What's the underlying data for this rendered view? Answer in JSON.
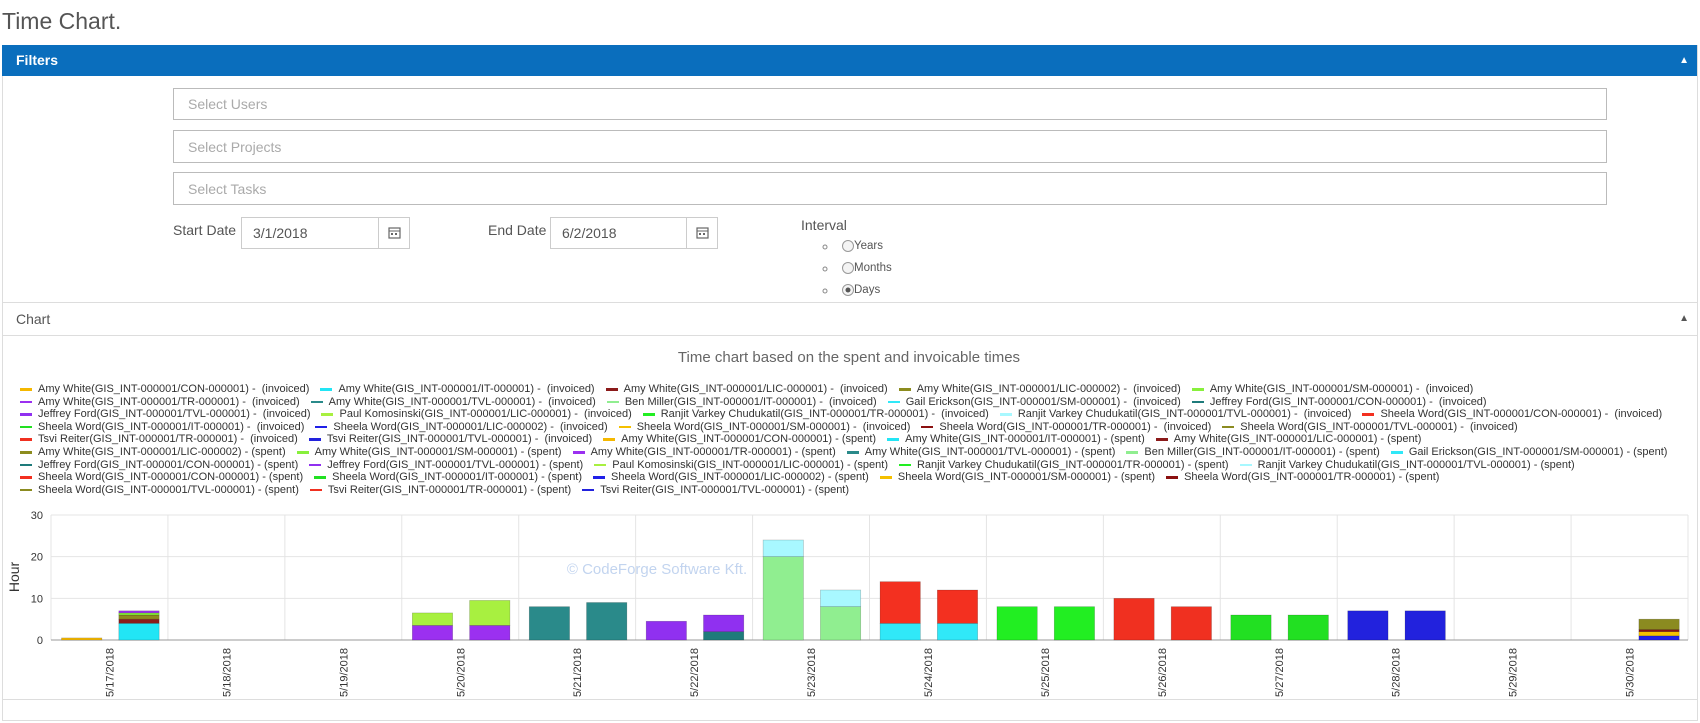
{
  "page_title": "Time Chart.",
  "filters": {
    "title": "Filters",
    "users_placeholder": "Select Users",
    "projects_placeholder": "Select Projects",
    "tasks_placeholder": "Select Tasks",
    "start_date_label": "Start Date",
    "start_date": "3/1/2018",
    "end_date_label": "End Date",
    "end_date": "6/2/2018",
    "interval_label": "Interval",
    "interval_options": [
      "Years",
      "Months",
      "Days"
    ],
    "selected_interval": 2
  },
  "chart_panel": {
    "title": "Chart"
  },
  "chart_data": {
    "type": "bar",
    "stacked": true,
    "grid": true,
    "title": "Time chart based on the spent and invoicable times",
    "watermark": "© CodeForge Software Kft.",
    "y_label": "Hour",
    "categories": [
      "5/17/2018",
      "5/18/2018",
      "5/19/2018",
      "5/20/2018",
      "5/21/2018",
      "5/22/2018",
      "5/23/2018",
      "5/24/2018",
      "5/25/2018",
      "5/26/2018",
      "5/27/2018",
      "5/28/2018",
      "5/29/2018",
      "5/30/2018"
    ],
    "ylim": [
      0,
      30
    ],
    "yticks": [
      0,
      10,
      20,
      30
    ],
    "series": [
      {
        "name": "Amy White(GIS_INT-000001/CON-000001) -  (invoiced)",
        "color": "#f5b800",
        "stack": 0,
        "values": [
          0.5,
          null,
          null,
          null,
          null,
          null,
          null,
          null,
          null,
          null,
          null,
          null,
          null,
          null
        ]
      },
      {
        "name": "Amy White(GIS_INT-000001/IT-000001) -  (invoiced)",
        "color": "#22e5f5",
        "stack": 0,
        "values": [
          null,
          null,
          null,
          null,
          null,
          null,
          null,
          null,
          null,
          null,
          null,
          null,
          null,
          null
        ]
      },
      {
        "name": "Amy White(GIS_INT-000001/LIC-000001) -  (invoiced)",
        "color": "#8b1a1a",
        "stack": 0,
        "values": [
          null,
          null,
          null,
          null,
          null,
          null,
          null,
          null,
          null,
          null,
          null,
          null,
          null,
          null
        ]
      },
      {
        "name": "Amy White(GIS_INT-000001/LIC-000002) -  (invoiced)",
        "color": "#8c8c1e",
        "stack": 0,
        "values": [
          null,
          null,
          null,
          null,
          null,
          null,
          null,
          null,
          null,
          null,
          null,
          null,
          null,
          null
        ]
      },
      {
        "name": "Amy White(GIS_INT-000001/SM-000001) -  (invoiced)",
        "color": "#88f03c",
        "stack": 0,
        "values": [
          null,
          null,
          null,
          null,
          null,
          null,
          null,
          null,
          null,
          null,
          null,
          null,
          null,
          null
        ]
      },
      {
        "name": "Amy White(GIS_INT-000001/TR-000001) -  (invoiced)",
        "color": "#9b30f0",
        "stack": 0,
        "values": [
          null,
          null,
          null,
          3.5,
          null,
          null,
          null,
          null,
          null,
          null,
          null,
          null,
          null,
          null
        ]
      },
      {
        "name": "Amy White(GIS_INT-000001/TVL-000001) -  (invoiced)",
        "color": "#2a8a8a",
        "stack": 0,
        "values": [
          null,
          null,
          null,
          null,
          8,
          null,
          null,
          null,
          null,
          null,
          null,
          null,
          null,
          null
        ]
      },
      {
        "name": "Ben Miller(GIS_INT-000001/IT-000001) -  (invoiced)",
        "color": "#90ee90",
        "stack": 0,
        "values": [
          null,
          null,
          null,
          null,
          null,
          null,
          20,
          null,
          null,
          null,
          null,
          null,
          null,
          null
        ]
      },
      {
        "name": "Gail Erickson(GIS_INT-000001/SM-000001) -  (invoiced)",
        "color": "#30e8f8",
        "stack": 0,
        "values": [
          null,
          null,
          null,
          null,
          null,
          null,
          null,
          4,
          null,
          null,
          null,
          null,
          null,
          null
        ]
      },
      {
        "name": "Jeffrey Ford(GIS_INT-000001/CON-000001) -  (invoiced)",
        "color": "#1e7b7b",
        "stack": 0,
        "values": [
          null,
          null,
          null,
          null,
          null,
          null,
          null,
          null,
          null,
          null,
          null,
          null,
          null,
          null
        ]
      },
      {
        "name": "Jeffrey Ford(GIS_INT-000001/TVL-000001) -  (invoiced)",
        "color": "#9030f0",
        "stack": 0,
        "values": [
          null,
          null,
          null,
          null,
          null,
          4.5,
          null,
          null,
          null,
          null,
          null,
          null,
          null,
          null
        ]
      },
      {
        "name": "Paul Komosinski(GIS_INT-000001/LIC-000001) -  (invoiced)",
        "color": "#a8f040",
        "stack": 0,
        "values": [
          null,
          null,
          null,
          3,
          null,
          null,
          null,
          null,
          null,
          null,
          null,
          null,
          null,
          null
        ]
      },
      {
        "name": "Ranjit Varkey Chudukatil(GIS_INT-000001/TR-000001) -  (invoiced)",
        "color": "#22ee22",
        "stack": 0,
        "values": [
          null,
          null,
          null,
          null,
          null,
          null,
          null,
          null,
          8,
          null,
          null,
          null,
          null,
          null
        ]
      },
      {
        "name": "Ranjit Varkey Chudukatil(GIS_INT-000001/TVL-000001) -  (invoiced)",
        "color": "#a8f8ff",
        "stack": 0,
        "values": [
          null,
          null,
          null,
          null,
          null,
          null,
          4,
          null,
          null,
          null,
          null,
          null,
          null,
          null
        ]
      },
      {
        "name": "Sheela Word(GIS_INT-000001/CON-000001) -  (invoiced)",
        "color": "#f33020",
        "stack": 0,
        "values": [
          null,
          null,
          null,
          null,
          null,
          null,
          null,
          10,
          null,
          null,
          null,
          null,
          null,
          null
        ]
      },
      {
        "name": "Sheela Word(GIS_INT-000001/IT-000001) -  (invoiced)",
        "color": "#22e022",
        "stack": 0,
        "values": [
          null,
          null,
          null,
          null,
          null,
          null,
          null,
          null,
          null,
          null,
          6,
          null,
          null,
          null
        ]
      },
      {
        "name": "Sheela Word(GIS_INT-000001/LIC-000002) -  (invoiced)",
        "color": "#2020e8",
        "stack": 0,
        "values": [
          null,
          null,
          null,
          null,
          null,
          null,
          null,
          null,
          null,
          null,
          null,
          null,
          null,
          null
        ]
      },
      {
        "name": "Sheela Word(GIS_INT-000001/SM-000001) -  (invoiced)",
        "color": "#f5c000",
        "stack": 0,
        "values": [
          null,
          null,
          null,
          null,
          null,
          null,
          null,
          null,
          null,
          null,
          null,
          null,
          null,
          null
        ]
      },
      {
        "name": "Sheela Word(GIS_INT-000001/TR-000001) -  (invoiced)",
        "color": "#8b1010",
        "stack": 0,
        "values": [
          null,
          null,
          null,
          null,
          null,
          null,
          null,
          null,
          null,
          null,
          null,
          null,
          null,
          null
        ]
      },
      {
        "name": "Sheela Word(GIS_INT-000001/TVL-000001) -  (invoiced)",
        "color": "#8b8b20",
        "stack": 0,
        "values": [
          null,
          null,
          null,
          null,
          null,
          null,
          null,
          null,
          null,
          null,
          null,
          null,
          null,
          null
        ]
      },
      {
        "name": "Tsvi Reiter(GIS_INT-000001/TR-000001) -  (invoiced)",
        "color": "#f03020",
        "stack": 0,
        "values": [
          null,
          null,
          null,
          null,
          null,
          null,
          null,
          null,
          null,
          10,
          null,
          null,
          null,
          null
        ]
      },
      {
        "name": "Tsvi Reiter(GIS_INT-000001/TVL-000001) -  (invoiced)",
        "color": "#2222dd",
        "stack": 0,
        "values": [
          null,
          null,
          null,
          null,
          null,
          null,
          null,
          null,
          null,
          null,
          null,
          7,
          null,
          null
        ]
      },
      {
        "name": "Amy White(GIS_INT-000001/CON-000001) - (spent)",
        "color": "#f5b800",
        "stack": 1,
        "values": [
          null,
          null,
          null,
          null,
          null,
          null,
          null,
          null,
          null,
          null,
          null,
          null,
          null,
          null
        ]
      },
      {
        "name": "Amy White(GIS_INT-000001/IT-000001) - (spent)",
        "color": "#22e5f5",
        "stack": 1,
        "values": [
          4,
          null,
          null,
          null,
          null,
          null,
          null,
          null,
          null,
          null,
          null,
          null,
          null,
          null
        ]
      },
      {
        "name": "Amy White(GIS_INT-000001/LIC-000001) - (spent)",
        "color": "#8b1a1a",
        "stack": 1,
        "values": [
          1,
          null,
          null,
          null,
          null,
          null,
          null,
          null,
          null,
          null,
          null,
          null,
          null,
          null
        ]
      },
      {
        "name": "Amy White(GIS_INT-000001/LIC-000002) - (spent)",
        "color": "#8c8c1e",
        "stack": 1,
        "values": [
          1,
          null,
          null,
          null,
          null,
          null,
          null,
          null,
          null,
          null,
          null,
          null,
          null,
          null
        ]
      },
      {
        "name": "Amy White(GIS_INT-000001/SM-000001) - (spent)",
        "color": "#88f03c",
        "stack": 1,
        "values": [
          0.5,
          null,
          null,
          null,
          null,
          null,
          null,
          null,
          null,
          null,
          null,
          null,
          null,
          null
        ]
      },
      {
        "name": "Amy White(GIS_INT-000001/TR-000001) - (spent)",
        "color": "#9b30f0",
        "stack": 1,
        "values": [
          0.5,
          null,
          null,
          3.5,
          null,
          null,
          null,
          null,
          null,
          null,
          null,
          null,
          null,
          null
        ]
      },
      {
        "name": "Amy White(GIS_INT-000001/TVL-000001) - (spent)",
        "color": "#2a8a8a",
        "stack": 1,
        "values": [
          null,
          null,
          null,
          null,
          9,
          null,
          null,
          null,
          null,
          null,
          null,
          null,
          null,
          null
        ]
      },
      {
        "name": "Ben Miller(GIS_INT-000001/IT-000001) - (spent)",
        "color": "#90ee90",
        "stack": 1,
        "values": [
          null,
          null,
          null,
          null,
          null,
          null,
          8,
          null,
          null,
          null,
          null,
          null,
          null,
          null
        ]
      },
      {
        "name": "Gail Erickson(GIS_INT-000001/SM-000001) - (spent)",
        "color": "#30e8f8",
        "stack": 1,
        "values": [
          null,
          null,
          null,
          null,
          null,
          null,
          null,
          4,
          null,
          null,
          null,
          null,
          null,
          null
        ]
      },
      {
        "name": "Jeffrey Ford(GIS_INT-000001/CON-000001) - (spent)",
        "color": "#1e7b7b",
        "stack": 1,
        "values": [
          null,
          null,
          null,
          null,
          null,
          2,
          null,
          null,
          null,
          null,
          null,
          null,
          null,
          null
        ]
      },
      {
        "name": "Jeffrey Ford(GIS_INT-000001/TVL-000001) - (spent)",
        "color": "#9030f0",
        "stack": 1,
        "values": [
          null,
          null,
          null,
          null,
          null,
          4,
          null,
          null,
          null,
          null,
          null,
          null,
          null,
          null
        ]
      },
      {
        "name": "Paul Komosinski(GIS_INT-000001/LIC-000001) - (spent)",
        "color": "#a8f040",
        "stack": 1,
        "values": [
          null,
          null,
          null,
          6,
          null,
          null,
          null,
          null,
          null,
          null,
          null,
          null,
          null,
          null
        ]
      },
      {
        "name": "Ranjit Varkey Chudukatil(GIS_INT-000001/TR-000001) - (spent)",
        "color": "#22ee22",
        "stack": 1,
        "values": [
          null,
          null,
          null,
          null,
          null,
          null,
          null,
          null,
          8,
          null,
          null,
          null,
          null,
          null
        ]
      },
      {
        "name": "Ranjit Varkey Chudukatil(GIS_INT-000001/TVL-000001) - (spent)",
        "color": "#a8f8ff",
        "stack": 1,
        "values": [
          null,
          null,
          null,
          null,
          null,
          null,
          4,
          null,
          null,
          null,
          null,
          null,
          null,
          null
        ]
      },
      {
        "name": "Sheela Word(GIS_INT-000001/CON-000001) - (spent)",
        "color": "#f33020",
        "stack": 1,
        "values": [
          null,
          null,
          null,
          null,
          null,
          null,
          null,
          8,
          null,
          null,
          null,
          null,
          null,
          null
        ]
      },
      {
        "name": "Sheela Word(GIS_INT-000001/IT-000001) - (spent)",
        "color": "#22e022",
        "stack": 1,
        "values": [
          null,
          null,
          null,
          null,
          null,
          null,
          null,
          null,
          null,
          null,
          6,
          null,
          null,
          null
        ]
      },
      {
        "name": "Sheela Word(GIS_INT-000001/LIC-000002) - (spent)",
        "color": "#2020e8",
        "stack": 1,
        "values": [
          null,
          null,
          null,
          null,
          null,
          null,
          null,
          null,
          null,
          null,
          null,
          null,
          null,
          1
        ]
      },
      {
        "name": "Sheela Word(GIS_INT-000001/SM-000001) - (spent)",
        "color": "#f5c000",
        "stack": 1,
        "values": [
          null,
          null,
          null,
          null,
          null,
          null,
          null,
          null,
          null,
          null,
          null,
          null,
          null,
          1
        ]
      },
      {
        "name": "Sheela Word(GIS_INT-000001/TR-000001) - (spent)",
        "color": "#8b1010",
        "stack": 1,
        "values": [
          null,
          null,
          null,
          null,
          null,
          null,
          null,
          null,
          null,
          null,
          null,
          null,
          null,
          0.5
        ]
      },
      {
        "name": "Sheela Word(GIS_INT-000001/TVL-000001) - (spent)",
        "color": "#8b8b20",
        "stack": 1,
        "values": [
          null,
          null,
          null,
          null,
          null,
          null,
          null,
          null,
          null,
          null,
          null,
          null,
          null,
          2.5
        ]
      },
      {
        "name": "Tsvi Reiter(GIS_INT-000001/TR-000001) - (spent)",
        "color": "#f03020",
        "stack": 1,
        "values": [
          null,
          null,
          null,
          null,
          null,
          null,
          null,
          null,
          null,
          8,
          null,
          null,
          null,
          null
        ]
      },
      {
        "name": "Tsvi Reiter(GIS_INT-000001/TVL-000001) - (spent)",
        "color": "#2222dd",
        "stack": 1,
        "values": [
          null,
          null,
          null,
          null,
          null,
          null,
          null,
          null,
          null,
          null,
          null,
          7,
          null,
          null
        ]
      }
    ]
  }
}
